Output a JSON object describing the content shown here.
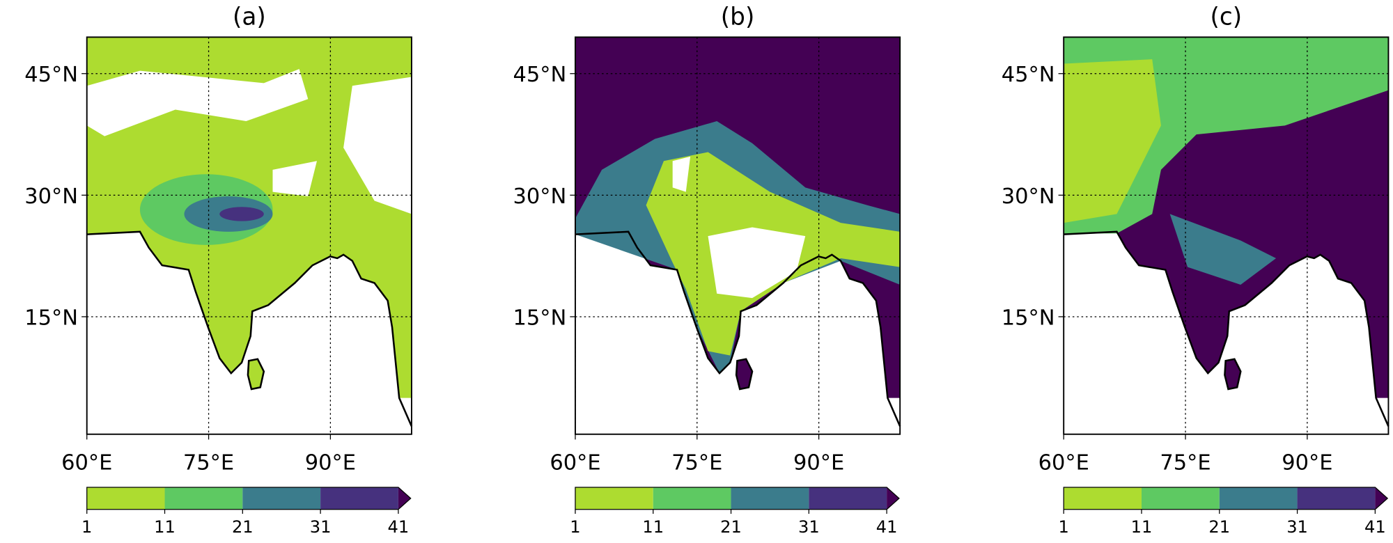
{
  "panels": [
    {
      "label": "(a)"
    },
    {
      "label": "(b)"
    },
    {
      "label": "(c)"
    }
  ],
  "map": {
    "lon_range": [
      60,
      100
    ],
    "lat_range": [
      0.5,
      49.5
    ],
    "xticks": [
      {
        "value": 60,
        "label": "60°E"
      },
      {
        "value": 75,
        "label": "75°E"
      },
      {
        "value": 90,
        "label": "90°E"
      }
    ],
    "yticks": [
      {
        "value": 15,
        "label": "15°N"
      },
      {
        "value": 30,
        "label": "30°N"
      },
      {
        "value": 45,
        "label": "45°N"
      }
    ]
  },
  "colorbar": {
    "levels": [
      1,
      11,
      21,
      31,
      41
    ],
    "colors": [
      "#addc30",
      "#5ec962",
      "#3b7c8c",
      "#46317e"
    ],
    "extend_color": "#440154"
  }
}
